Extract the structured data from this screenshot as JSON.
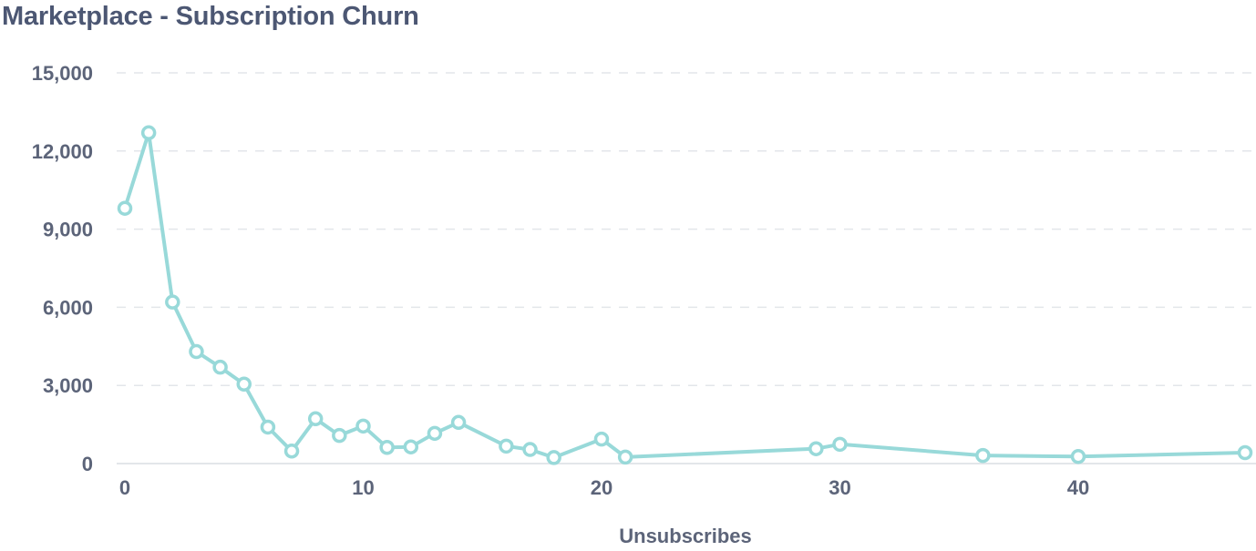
{
  "page": {
    "title": "Marketplace - Subscription Churn"
  },
  "chart_data": {
    "type": "line",
    "title": "Marketplace - Subscription Churn",
    "xlabel": "Unsubscribes",
    "ylabel": "",
    "xlim": [
      0,
      47
    ],
    "ylim": [
      0,
      15000
    ],
    "x_ticks": [
      0,
      10,
      20,
      30,
      40
    ],
    "x_tick_labels": [
      "0",
      "10",
      "20",
      "30",
      "40"
    ],
    "y_ticks": [
      0,
      3000,
      6000,
      9000,
      12000,
      15000
    ],
    "y_tick_labels": [
      "0",
      "3,000",
      "6,000",
      "9,000",
      "12,000",
      "15,000"
    ],
    "grid": true,
    "legend": "none",
    "colors": {
      "series": "#98d9d9",
      "text": "#5c6479",
      "title": "#4c5773",
      "grid": "#e3e6ea"
    },
    "series": [
      {
        "x": [
          0,
          1,
          2,
          3,
          4,
          5,
          6,
          7,
          8,
          9,
          10,
          11,
          12,
          13,
          14,
          16,
          17,
          18,
          20,
          21,
          29,
          30,
          36,
          40,
          47
        ],
        "y": [
          9800,
          12700,
          6200,
          4300,
          3700,
          3050,
          1400,
          480,
          1720,
          1080,
          1440,
          620,
          640,
          1160,
          1580,
          670,
          540,
          230,
          940,
          250,
          570,
          740,
          310,
          270,
          420
        ]
      }
    ]
  }
}
